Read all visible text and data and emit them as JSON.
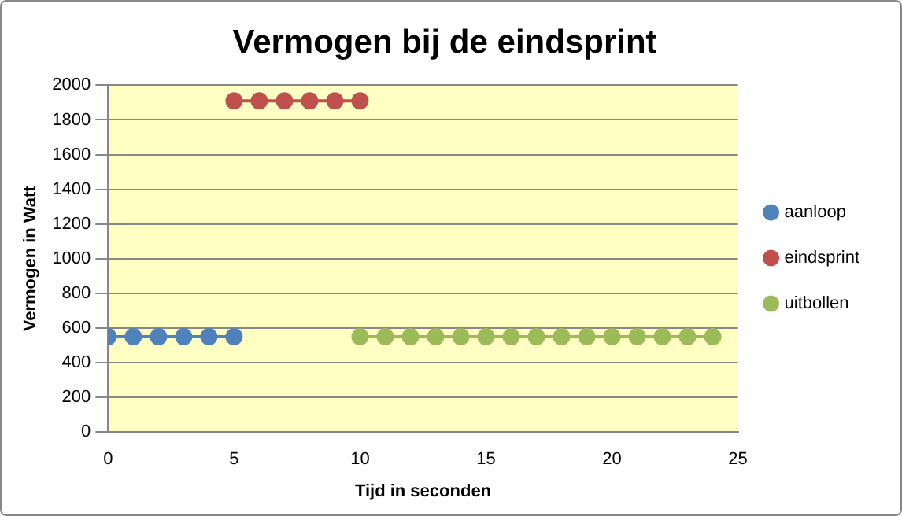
{
  "chart_data": {
    "type": "line",
    "title": "Vermogen bij de eindsprint",
    "xlabel": "Tijd in seconden",
    "ylabel": "Vermogen in Watt",
    "xlim": [
      0,
      25
    ],
    "xticks": [
      0,
      5,
      10,
      15,
      20,
      25
    ],
    "ylim": [
      0,
      2000
    ],
    "yticks": [
      0,
      200,
      400,
      600,
      800,
      1000,
      1200,
      1400,
      1600,
      1800,
      2000
    ],
    "grid": "y",
    "legend": "right",
    "marker": "circle",
    "line_style": "solid",
    "series": [
      {
        "name": "aanloop",
        "color": "#4f81bd",
        "x": [
          0,
          1,
          2,
          3,
          4,
          5
        ],
        "values": [
          550,
          550,
          550,
          550,
          550,
          550
        ]
      },
      {
        "name": "eindsprint",
        "color": "#c0504d",
        "x": [
          5,
          6,
          7,
          8,
          9,
          10
        ],
        "values": [
          1910,
          1910,
          1910,
          1910,
          1910,
          1910
        ]
      },
      {
        "name": "uitbollen",
        "color": "#9bbb59",
        "x": [
          10,
          11,
          12,
          13,
          14,
          15,
          16,
          17,
          18,
          19,
          20,
          21,
          22,
          23,
          24
        ],
        "values": [
          550,
          550,
          550,
          550,
          550,
          550,
          550,
          550,
          550,
          550,
          550,
          550,
          550,
          550,
          550
        ]
      }
    ]
  }
}
